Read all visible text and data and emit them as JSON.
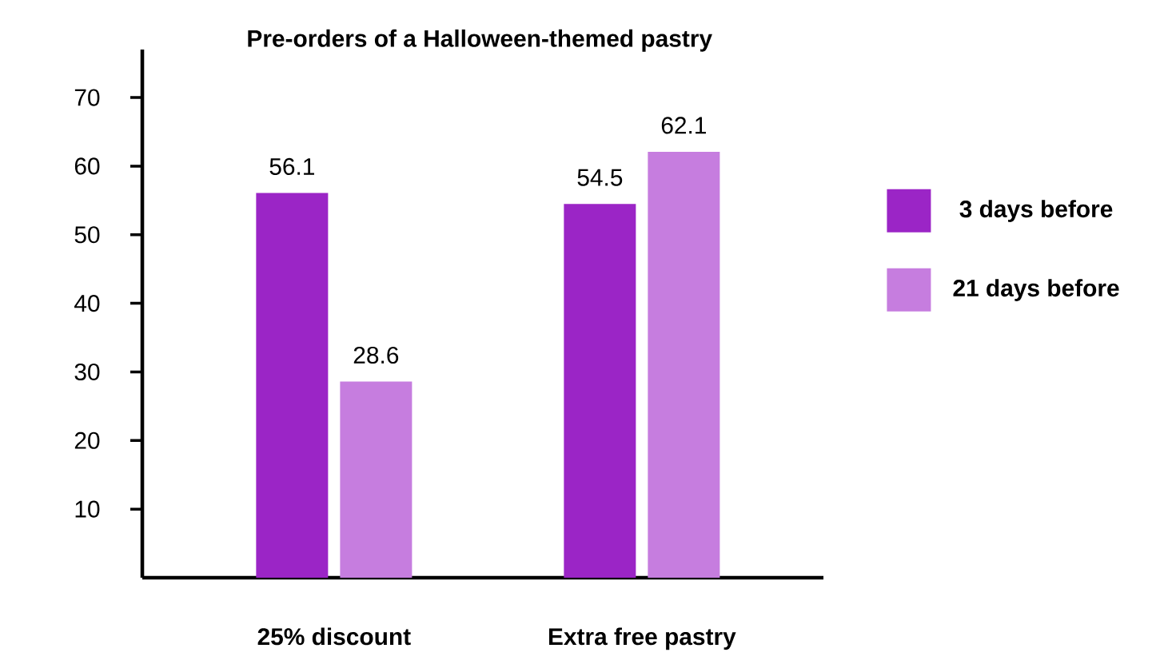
{
  "chart_data": {
    "type": "bar",
    "title": "Pre-orders of a Halloween-themed pastry",
    "categories": [
      "25% discount",
      "Extra free pastry"
    ],
    "series": [
      {
        "name": "3 days before",
        "color": "#9b25c6",
        "values": [
          56.1,
          54.5
        ]
      },
      {
        "name": "21 days before",
        "color": "#c67ddf",
        "values": [
          28.6,
          62.1
        ]
      }
    ],
    "ylim": [
      0,
      77
    ],
    "yticks": [
      10,
      20,
      30,
      40,
      50,
      60,
      70
    ],
    "data_labels": true,
    "legend": "right",
    "grid": false
  }
}
